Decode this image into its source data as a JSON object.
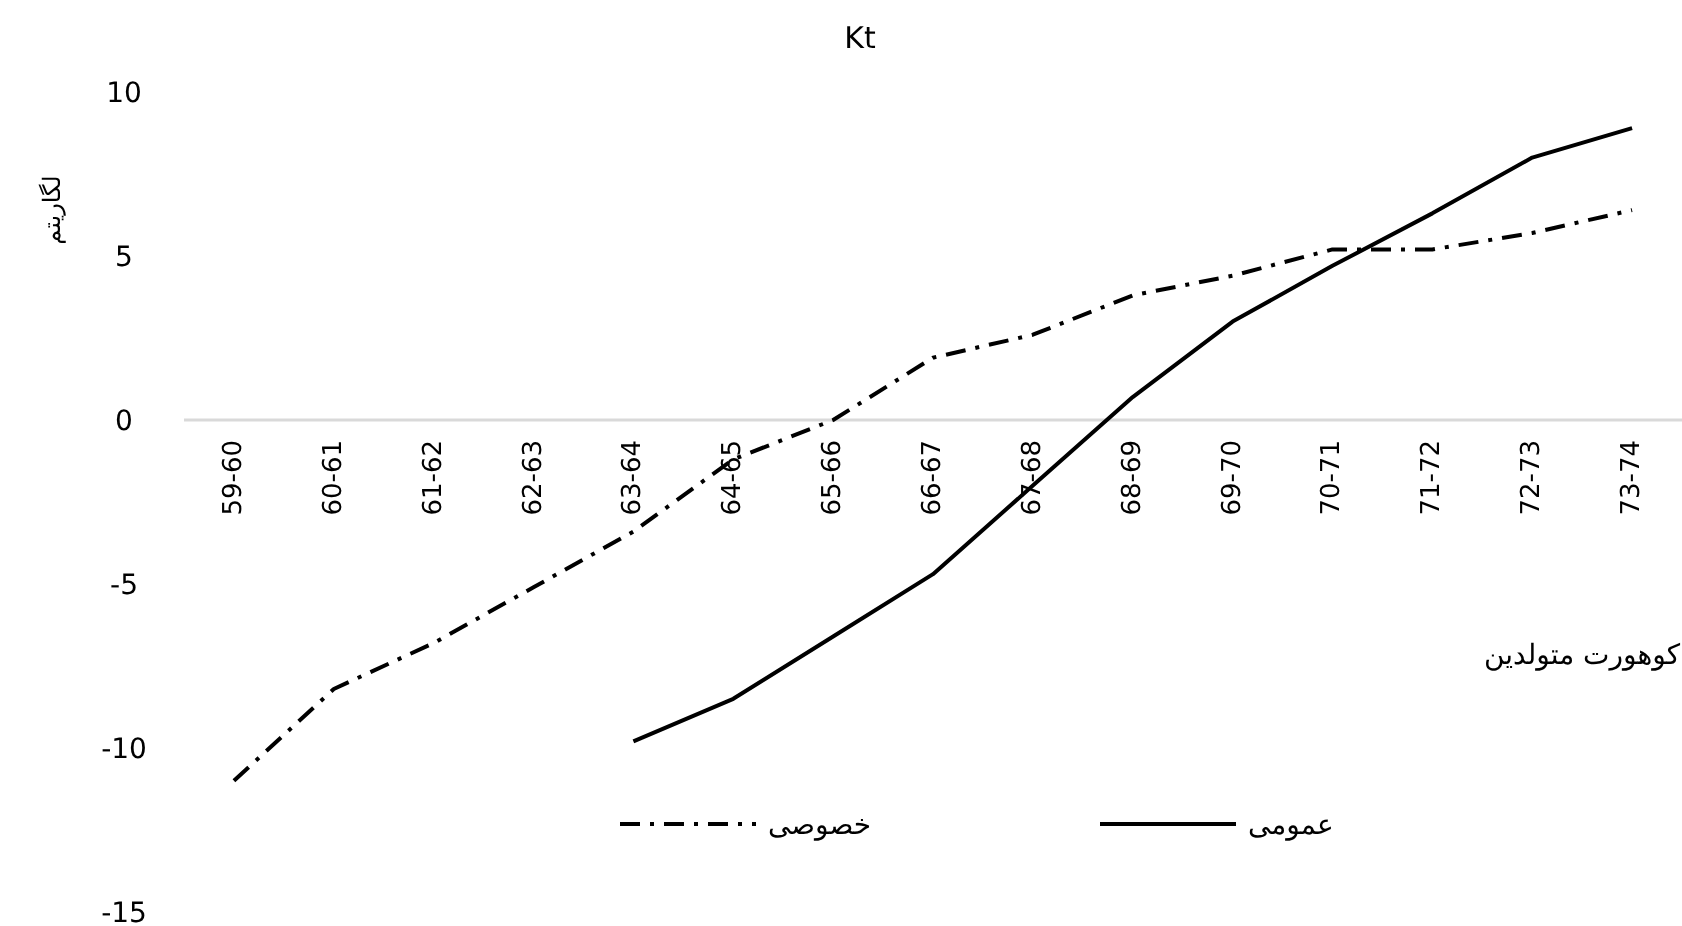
{
  "chart_data": {
    "type": "line",
    "title": "Kt",
    "ylabel": "لگاریتم",
    "xlabel": "کوهورت متولدین",
    "categories": [
      "59-60",
      "60-61",
      "61-62",
      "62-63",
      "63-64",
      "64-65",
      "65-66",
      "66-67",
      "67-68",
      "68-69",
      "69-70",
      "70-71",
      "71-72",
      "72-73",
      "73-74"
    ],
    "series": [
      {
        "name": "خصوصی",
        "color": "#000000",
        "line_style": "dashdot",
        "values": [
          -11.0,
          -8.2,
          -6.8,
          -5.1,
          -3.4,
          -1.2,
          0.0,
          1.9,
          2.6,
          3.8,
          4.4,
          5.2,
          5.2,
          5.7,
          6.4
        ]
      },
      {
        "name": "عمومی",
        "color": "#000000",
        "line_style": "solid",
        "values": [
          null,
          null,
          null,
          null,
          -9.8,
          -8.5,
          -6.6,
          -4.7,
          -2.0,
          0.7,
          3.0,
          4.7,
          6.3,
          8.0,
          8.9
        ]
      }
    ],
    "ylim": [
      -15,
      10
    ],
    "yticks": [
      -15,
      -10,
      -5,
      0,
      5,
      10
    ],
    "legend": "bottom",
    "grid": false,
    "marker": "none"
  }
}
